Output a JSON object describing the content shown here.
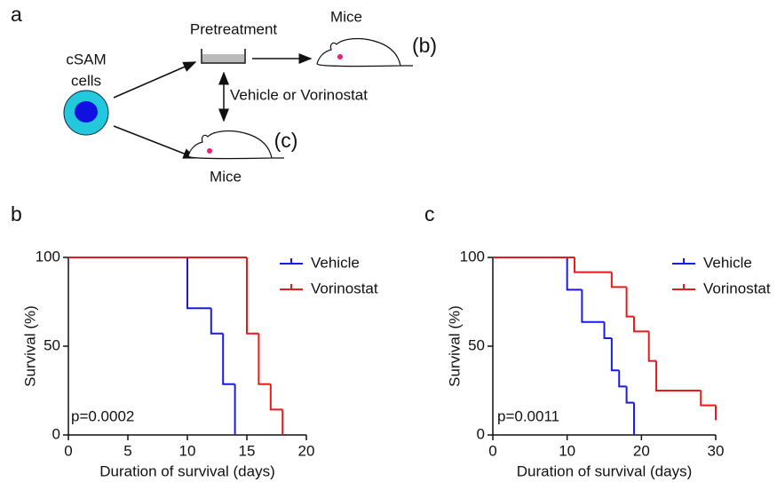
{
  "diagram": {
    "panel_label": "a",
    "cells_line1": "cSAM",
    "cells_line2": "cells",
    "pretreatment": "Pretreatment",
    "mice_top": "Mice",
    "ref_b": "(b)",
    "treatment": "Vehicle or Vorinostat",
    "ref_c": "(c)",
    "mice_bottom": "Mice"
  },
  "chart_data": [
    {
      "type": "step",
      "panel_label": "b",
      "annotation": "p=0.0002",
      "xlabel": "Duration of survival (days)",
      "ylabel": "Survival (%)",
      "xlim": [
        0,
        20
      ],
      "xticks": [
        0,
        5,
        10,
        15,
        20
      ],
      "ylim": [
        0,
        100
      ],
      "yticks": [
        0,
        50,
        100
      ],
      "series": [
        {
          "name": "Vehicle",
          "color": "#1a1ae6",
          "x": [
            0,
            10,
            12,
            13,
            14
          ],
          "values": [
            100,
            71.4,
            57.1,
            28.6,
            0
          ]
        },
        {
          "name": "Vorinostat",
          "color": "#e61a1a",
          "x": [
            0,
            15,
            16,
            17,
            18
          ],
          "values": [
            100,
            57.1,
            28.6,
            14.3,
            0
          ]
        }
      ]
    },
    {
      "type": "step",
      "panel_label": "c",
      "annotation": "p=0.0011",
      "xlabel": "Duration of survival (days)",
      "ylabel": "Survival (%)",
      "xlim": [
        0,
        30
      ],
      "xticks": [
        0,
        10,
        20,
        30
      ],
      "ylim": [
        0,
        100
      ],
      "yticks": [
        0,
        50,
        100
      ],
      "series": [
        {
          "name": "Vehicle",
          "color": "#1a1ae6",
          "x": [
            0,
            10,
            12,
            15,
            16,
            17,
            18,
            19
          ],
          "values": [
            100,
            81.8,
            63.6,
            54.5,
            36.4,
            27.3,
            18.2,
            0
          ]
        },
        {
          "name": "Vorinostat",
          "color": "#e61a1a",
          "x": [
            0,
            11,
            16,
            18,
            19,
            21,
            22,
            28,
            30
          ],
          "values": [
            100,
            91.7,
            83.3,
            66.7,
            58.3,
            41.7,
            25,
            16.7,
            8.3
          ]
        }
      ]
    }
  ]
}
